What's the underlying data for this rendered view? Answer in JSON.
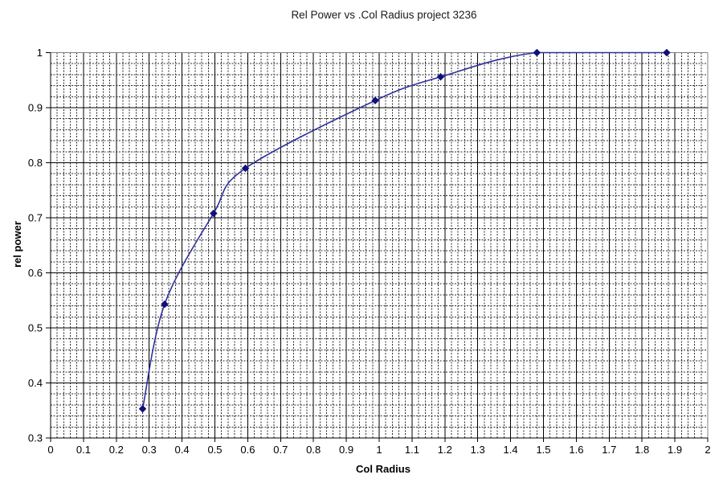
{
  "page": {
    "background": "#ffffff"
  },
  "chart_data": {
    "type": "line",
    "title": "Rel Power vs .Col Radius project 3236",
    "xlabel": "Col Radius",
    "ylabel": "rel power",
    "xlim": [
      0,
      2
    ],
    "ylim": [
      0.3,
      1
    ],
    "x_major_step": 0.1,
    "y_major_step": 0.1,
    "minor_step": 0.02,
    "grid": "major-solid, minor-dashed, both axes",
    "legend": "none",
    "x_tick_labels": [
      "0",
      "0.1",
      "0.2",
      "0.3",
      "0.4",
      "0.5",
      "0.6",
      "0.7",
      "0.8",
      "0.9",
      "1",
      "1.1",
      "1.2",
      "1.3",
      "1.4",
      "1.5",
      "1.6",
      "1.7",
      "1.8",
      "1.9",
      "2"
    ],
    "y_tick_labels": [
      "0.3",
      "0.4",
      "0.5",
      "0.6",
      "0.7",
      "0.8",
      "0.9",
      "1"
    ],
    "series": [
      {
        "name": "rel power",
        "x": [
          0.28,
          0.347,
          0.496,
          0.593,
          0.988,
          1.187,
          1.48,
          1.875
        ],
        "y": [
          0.353,
          0.543,
          0.708,
          0.79,
          0.913,
          0.956,
          1.0,
          1.0
        ],
        "smooth": true,
        "marker": "diamond",
        "line_color": "#30309a",
        "marker_color": "#10107a"
      }
    ],
    "colors": {
      "axis": "#000000",
      "major_grid": "#000000",
      "minor_grid": "#2b2b2b",
      "plot_border": "#808080",
      "text": "#000000"
    }
  }
}
